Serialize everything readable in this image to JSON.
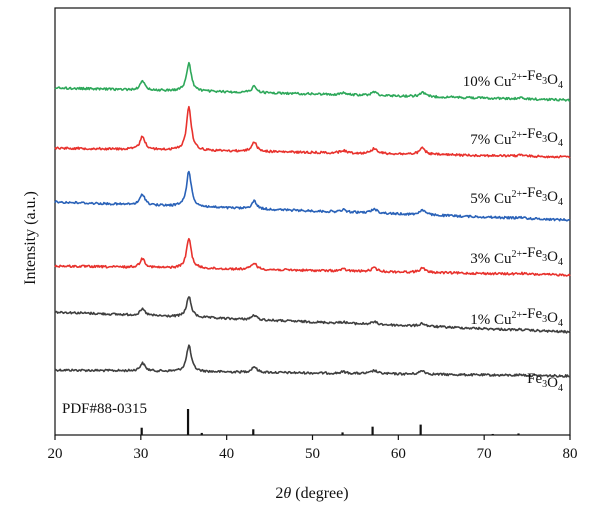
{
  "chart_data": {
    "type": "line",
    "title": "",
    "xlabel_prefix": "2",
    "xlabel_symbol": "θ",
    "xlabel_suffix": " (degree)",
    "ylabel": "Intensity (a.u.)",
    "xlim": [
      20,
      80
    ],
    "x_ticks": [
      20,
      30,
      40,
      50,
      60,
      70,
      80
    ],
    "y_ticks_shown": false,
    "legend": "none",
    "reference": {
      "label": "PDF#88-0315",
      "peaks": [
        {
          "x": 30.1,
          "h": 0.28
        },
        {
          "x": 35.5,
          "h": 1.0
        },
        {
          "x": 37.1,
          "h": 0.08
        },
        {
          "x": 43.1,
          "h": 0.22
        },
        {
          "x": 53.5,
          "h": 0.1
        },
        {
          "x": 57.0,
          "h": 0.32
        },
        {
          "x": 62.6,
          "h": 0.4
        },
        {
          "x": 71.0,
          "h": 0.04
        },
        {
          "x": 74.0,
          "h": 0.06
        }
      ]
    },
    "series": [
      {
        "label_prefix": "",
        "label_sup": "",
        "label_mid": "Fe",
        "label_sub": "3",
        "label_o": "O",
        "label_sub2": "4",
        "color": "#3f3f3f",
        "peak_scale": 1.0,
        "baseline_slope": 0.4
      },
      {
        "label_prefix": "1% Cu",
        "label_sup": "2+",
        "label_mid": "-Fe",
        "label_sub": "3",
        "label_o": "O",
        "label_sub2": "4",
        "color": "#3f3f3f",
        "peak_scale": 0.85,
        "baseline_slope": 1.0
      },
      {
        "label_prefix": "3% Cu",
        "label_sup": "2+",
        "label_mid": "-Fe",
        "label_sub": "3",
        "label_o": "O",
        "label_sub2": "4",
        "color": "#e8322d",
        "peak_scale": 1.0,
        "baseline_slope": 0.5
      },
      {
        "label_prefix": "5% Cu",
        "label_sup": "2+",
        "label_mid": "-Fe",
        "label_sub": "3",
        "label_o": "O",
        "label_sub2": "4",
        "color": "#2a62b8",
        "peak_scale": 1.05,
        "baseline_slope": 1.0
      },
      {
        "label_prefix": "7% Cu",
        "label_sup": "2+",
        "label_mid": "-Fe",
        "label_sub": "3",
        "label_o": "O",
        "label_sub2": "4",
        "color": "#e8322d",
        "peak_scale": 1.15,
        "baseline_slope": 0.5
      },
      {
        "label_prefix": "10% Cu",
        "label_sup": "2+",
        "label_mid": "-Fe",
        "label_sub": "3",
        "label_o": "O",
        "label_sub2": "4",
        "color": "#2ea85a",
        "peak_scale": 1.0,
        "baseline_slope": 0.7
      }
    ],
    "peaks": [
      {
        "x": 30.2,
        "amp": 0.3,
        "w": 0.35
      },
      {
        "x": 35.6,
        "amp": 1.0,
        "w": 0.33
      },
      {
        "x": 43.2,
        "amp": 0.22,
        "w": 0.35
      },
      {
        "x": 53.6,
        "amp": 0.06,
        "w": 0.4
      },
      {
        "x": 57.2,
        "amp": 0.12,
        "w": 0.4
      },
      {
        "x": 62.8,
        "amp": 0.14,
        "w": 0.4
      },
      {
        "x": 74.3,
        "amp": 0.03,
        "w": 0.4
      }
    ]
  }
}
